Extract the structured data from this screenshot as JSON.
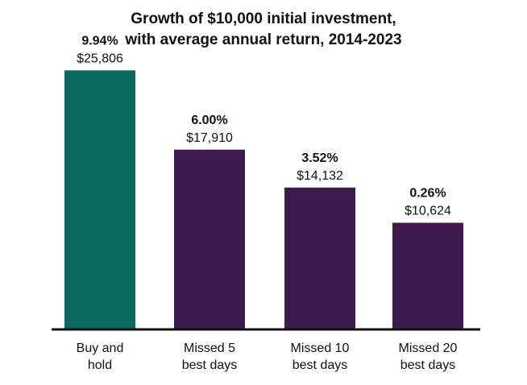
{
  "chart_data": {
    "type": "bar",
    "title_lines": [
      "Growth of $10,000 initial investment,",
      "with average annual return, 2014-2023"
    ],
    "categories": [
      [
        "Buy and",
        "hold"
      ],
      [
        "Missed 5",
        "best days"
      ],
      [
        "Missed 10",
        "best days"
      ],
      [
        "Missed 20",
        "best days"
      ]
    ],
    "values": [
      25806,
      17910,
      14132,
      10624
    ],
    "value_labels": [
      "$25,806",
      "$17,910",
      "$14,132",
      "$10,624"
    ],
    "returns": [
      "9.94%",
      "6.00%",
      "3.52%",
      "0.26%"
    ],
    "bar_colors": [
      "#0b6b5f",
      "#3d1a4f",
      "#3d1a4f",
      "#3d1a4f"
    ],
    "axis_color": "#111111",
    "ylim": [
      0,
      28000
    ],
    "grid": false,
    "legend": "none"
  }
}
